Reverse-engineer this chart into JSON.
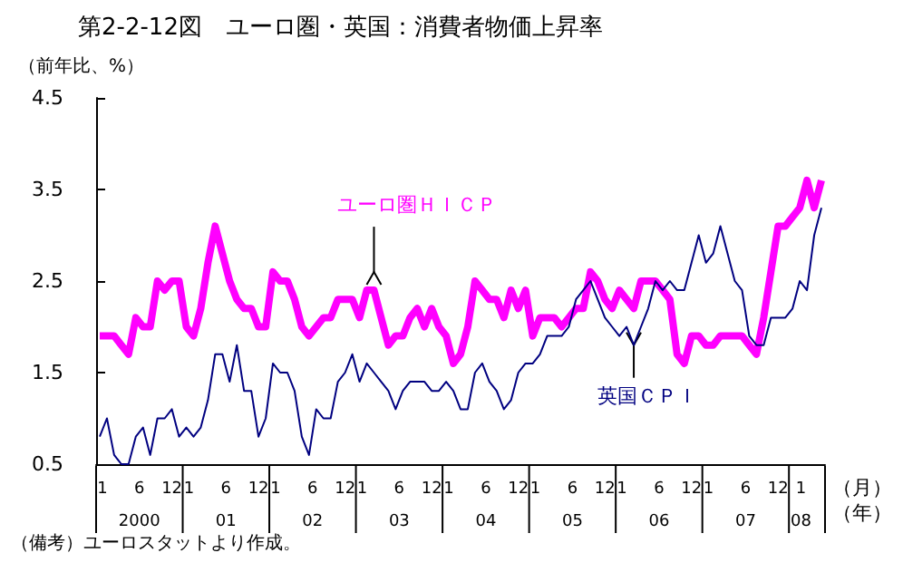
{
  "chart_data": {
    "type": "line",
    "title": "第2-2-12図　ユーロ圏・英国：消費者物価上昇率",
    "ylabel": "（前年比、%）",
    "xlabel": "（月）（年）",
    "x": [
      "2000-01",
      "2000-02",
      "2000-03",
      "2000-04",
      "2000-05",
      "2000-06",
      "2000-07",
      "2000-08",
      "2000-09",
      "2000-10",
      "2000-11",
      "2000-12",
      "2001-01",
      "2001-02",
      "2001-03",
      "2001-04",
      "2001-05",
      "2001-06",
      "2001-07",
      "2001-08",
      "2001-09",
      "2001-10",
      "2001-11",
      "2001-12",
      "2002-01",
      "2002-02",
      "2002-03",
      "2002-04",
      "2002-05",
      "2002-06",
      "2002-07",
      "2002-08",
      "2002-09",
      "2002-10",
      "2002-11",
      "2002-12",
      "2003-01",
      "2003-02",
      "2003-03",
      "2003-04",
      "2003-05",
      "2003-06",
      "2003-07",
      "2003-08",
      "2003-09",
      "2003-10",
      "2003-11",
      "2003-12",
      "2004-01",
      "2004-02",
      "2004-03",
      "2004-04",
      "2004-05",
      "2004-06",
      "2004-07",
      "2004-08",
      "2004-09",
      "2004-10",
      "2004-11",
      "2004-12",
      "2005-01",
      "2005-02",
      "2005-03",
      "2005-04",
      "2005-05",
      "2005-06",
      "2005-07",
      "2005-08",
      "2005-09",
      "2005-10",
      "2005-11",
      "2005-12",
      "2006-01",
      "2006-02",
      "2006-03",
      "2006-04",
      "2006-05",
      "2006-06",
      "2006-07",
      "2006-08",
      "2006-09",
      "2006-10",
      "2006-11",
      "2006-12",
      "2007-01",
      "2007-02",
      "2007-03",
      "2007-04",
      "2007-05",
      "2007-06",
      "2007-07",
      "2007-08",
      "2007-09",
      "2007-10",
      "2007-11",
      "2007-12",
      "2008-01",
      "2008-02",
      "2008-03",
      "2008-04",
      "2008-05"
    ],
    "series": [
      {
        "name": "ユーロ圏ＨＩＣＰ",
        "color": "#ff00ff",
        "values": [
          1.9,
          1.9,
          1.9,
          1.8,
          1.7,
          2.1,
          2.0,
          2.0,
          2.5,
          2.4,
          2.5,
          2.5,
          2.0,
          1.9,
          2.2,
          2.7,
          3.1,
          2.8,
          2.5,
          2.3,
          2.2,
          2.2,
          2.0,
          2.0,
          2.6,
          2.5,
          2.5,
          2.3,
          2.0,
          1.9,
          2.0,
          2.1,
          2.1,
          2.3,
          2.3,
          2.3,
          2.1,
          2.4,
          2.4,
          2.1,
          1.8,
          1.9,
          1.9,
          2.1,
          2.2,
          2.0,
          2.2,
          2.0,
          1.9,
          1.6,
          1.7,
          2.0,
          2.5,
          2.4,
          2.3,
          2.3,
          2.1,
          2.4,
          2.2,
          2.4,
          1.9,
          2.1,
          2.1,
          2.1,
          2.0,
          2.1,
          2.2,
          2.2,
          2.6,
          2.5,
          2.3,
          2.2,
          2.4,
          2.3,
          2.2,
          2.5,
          2.5,
          2.5,
          2.4,
          2.3,
          1.7,
          1.6,
          1.9,
          1.9,
          1.8,
          1.8,
          1.9,
          1.9,
          1.9,
          1.9,
          1.8,
          1.7,
          2.1,
          2.6,
          3.1,
          3.1,
          3.2,
          3.3,
          3.6,
          3.3,
          3.6
        ]
      },
      {
        "name": "英国ＣＰＩ",
        "color": "#000080",
        "values": [
          0.8,
          1.0,
          0.6,
          0.5,
          0.5,
          0.8,
          0.9,
          0.6,
          1.0,
          1.0,
          1.1,
          0.8,
          0.9,
          0.8,
          0.9,
          1.2,
          1.7,
          1.7,
          1.4,
          1.8,
          1.3,
          1.3,
          0.8,
          1.0,
          1.6,
          1.5,
          1.5,
          1.3,
          0.8,
          0.6,
          1.1,
          1.0,
          1.0,
          1.4,
          1.5,
          1.7,
          1.4,
          1.6,
          1.5,
          1.4,
          1.3,
          1.1,
          1.3,
          1.4,
          1.4,
          1.4,
          1.3,
          1.3,
          1.4,
          1.3,
          1.1,
          1.1,
          1.5,
          1.6,
          1.4,
          1.3,
          1.1,
          1.2,
          1.5,
          1.6,
          1.6,
          1.7,
          1.9,
          1.9,
          1.9,
          2.0,
          2.3,
          2.4,
          2.5,
          2.3,
          2.1,
          2.0,
          1.9,
          2.0,
          1.8,
          2.0,
          2.2,
          2.5,
          2.4,
          2.5,
          2.4,
          2.4,
          2.7,
          3.0,
          2.7,
          2.8,
          3.1,
          2.8,
          2.5,
          2.4,
          1.9,
          1.8,
          1.8,
          2.1,
          2.1,
          2.1,
          2.2,
          2.5,
          2.4,
          3.0,
          3.3
        ]
      }
    ],
    "xlim": [
      "1999-12-16",
      "2008-05-16"
    ],
    "xticks": [
      {
        "value": "2000-01-12",
        "label": "1"
      },
      {
        "value": "2000-06-16",
        "label": "6\n2000"
      },
      {
        "value": "2000-11-01",
        "label": "12"
      },
      {
        "value": "2001-01-12",
        "label": "1"
      },
      {
        "value": "2001-06-16",
        "label": "6\n01"
      },
      {
        "value": "2001-11-01",
        "label": "12"
      },
      {
        "value": "2002-01-12",
        "label": "1"
      },
      {
        "value": "2002-06-16",
        "label": "6\n02"
      },
      {
        "value": "2002-11-01",
        "label": "12"
      },
      {
        "value": "2003-01-12",
        "label": "1"
      },
      {
        "value": "2003-06-16",
        "label": "6\n03"
      },
      {
        "value": "2003-11-01",
        "label": "12"
      },
      {
        "value": "2004-01-12",
        "label": "1"
      },
      {
        "value": "2004-06-16",
        "label": "6\n04"
      },
      {
        "value": "2004-11-01",
        "label": "12"
      },
      {
        "value": "2005-01-12",
        "label": "1"
      },
      {
        "value": "2005-06-16",
        "label": "6\n05"
      },
      {
        "value": "2005-11-01",
        "label": "12"
      },
      {
        "value": "2006-01-12",
        "label": "1"
      },
      {
        "value": "2006-06-16",
        "label": "6\n06"
      },
      {
        "value": "2006-11-01",
        "label": "12"
      },
      {
        "value": "2007-01-12",
        "label": "1"
      },
      {
        "value": "2007-06-16",
        "label": "6\n07"
      },
      {
        "value": "2007-11-01",
        "label": "12"
      },
      {
        "value": "2008-02-06",
        "label": "1\n08"
      }
    ],
    "ylim": [
      0.5,
      4.5
    ],
    "yticks": [
      0.5,
      1.5,
      2.5,
      3.5,
      4.5
    ],
    "annotations": [
      "（備考）ユーロスタットより作成。"
    ]
  }
}
